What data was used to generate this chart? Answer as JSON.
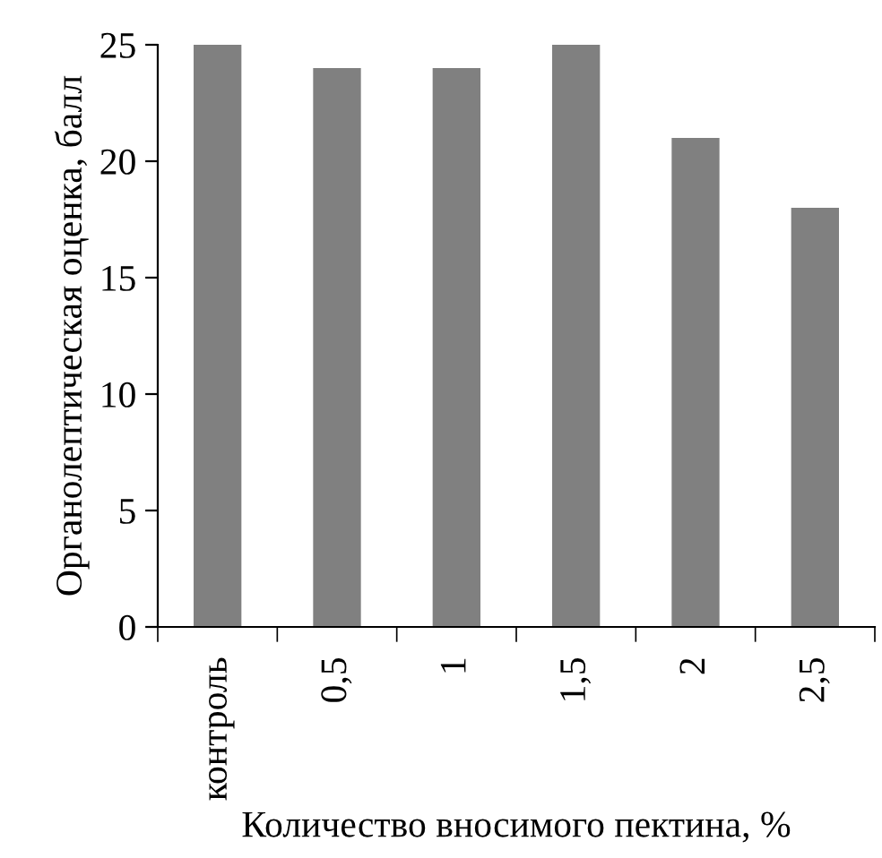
{
  "chart_data": {
    "type": "bar",
    "xlabel": "Количество вносимого пектина, %",
    "ylabel": "Органолептическая оценка, балл",
    "categories": [
      "контроль",
      "0,5",
      "1",
      "1,5",
      "2",
      "2,5"
    ],
    "values": [
      25,
      24,
      24,
      25,
      21,
      18
    ],
    "color": "#808080",
    "ylim": [
      0,
      25
    ],
    "yticks": [
      0,
      5,
      10,
      15,
      20,
      25
    ],
    "grid": false,
    "legend": false
  }
}
